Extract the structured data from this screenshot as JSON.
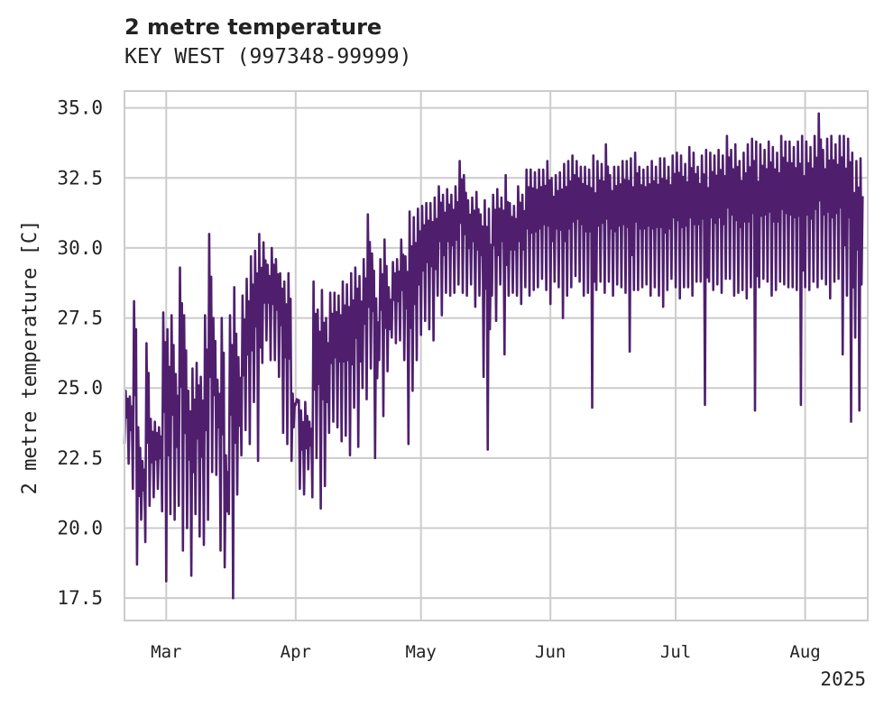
{
  "chart_data": {
    "type": "line",
    "title": "2 metre temperature",
    "subtitle": "KEY WEST (997348-99999)",
    "ylabel": "2 metre temperature [C]",
    "xlabel": "",
    "year_label": "2025",
    "ylim": [
      16.7,
      35.6
    ],
    "xlim": [
      "2025-02-19",
      "2025-08-16"
    ],
    "grid": true,
    "line_color": "#4f1f6e",
    "yticks": [
      {
        "value": 17.5,
        "label": "17.5"
      },
      {
        "value": 20.0,
        "label": "20.0"
      },
      {
        "value": 22.5,
        "label": "22.5"
      },
      {
        "value": 25.0,
        "label": "25.0"
      },
      {
        "value": 27.5,
        "label": "27.5"
      },
      {
        "value": 30.0,
        "label": "30.0"
      },
      {
        "value": 32.5,
        "label": "32.5"
      },
      {
        "value": 35.0,
        "label": "35.0"
      }
    ],
    "xticks": [
      {
        "date": "2025-03-01",
        "label": "Mar"
      },
      {
        "date": "2025-04-01",
        "label": "Apr"
      },
      {
        "date": "2025-05-01",
        "label": "May"
      },
      {
        "date": "2025-06-01",
        "label": "Jun"
      },
      {
        "date": "2025-07-01",
        "label": "Jul"
      },
      {
        "date": "2025-08-01",
        "label": "Aug"
      }
    ],
    "series": [
      {
        "x": [
          "2025-02-19",
          "2025-02-20",
          "2025-02-21",
          "2025-02-22",
          "2025-02-23",
          "2025-02-24",
          "2025-02-25",
          "2025-02-26",
          "2025-02-27",
          "2025-02-28",
          "2025-03-01",
          "2025-03-02",
          "2025-03-03",
          "2025-03-04",
          "2025-03-05",
          "2025-03-06",
          "2025-03-07",
          "2025-03-08",
          "2025-03-09",
          "2025-03-10",
          "2025-03-11",
          "2025-03-12",
          "2025-03-13",
          "2025-03-14",
          "2025-03-15",
          "2025-03-16",
          "2025-03-17",
          "2025-03-18",
          "2025-03-19",
          "2025-03-20",
          "2025-03-21",
          "2025-03-22",
          "2025-03-23",
          "2025-03-24",
          "2025-03-25",
          "2025-03-26",
          "2025-03-27",
          "2025-03-28",
          "2025-03-29",
          "2025-03-30",
          "2025-03-31",
          "2025-04-01",
          "2025-04-02",
          "2025-04-03",
          "2025-04-04",
          "2025-04-05",
          "2025-04-06",
          "2025-04-07",
          "2025-04-08",
          "2025-04-09",
          "2025-04-10",
          "2025-04-11",
          "2025-04-12",
          "2025-04-13",
          "2025-04-14",
          "2025-04-15",
          "2025-04-16",
          "2025-04-17",
          "2025-04-18",
          "2025-04-19",
          "2025-04-20",
          "2025-04-21",
          "2025-04-22",
          "2025-04-23",
          "2025-04-24",
          "2025-04-25",
          "2025-04-26",
          "2025-04-27",
          "2025-04-28",
          "2025-04-29",
          "2025-04-30",
          "2025-05-01",
          "2025-05-02",
          "2025-05-03",
          "2025-05-04",
          "2025-05-05",
          "2025-05-06",
          "2025-05-07",
          "2025-05-08",
          "2025-05-09",
          "2025-05-10",
          "2025-05-11",
          "2025-05-12",
          "2025-05-13",
          "2025-05-14",
          "2025-05-15",
          "2025-05-16",
          "2025-05-17",
          "2025-05-18",
          "2025-05-19",
          "2025-05-20",
          "2025-05-21",
          "2025-05-22",
          "2025-05-23",
          "2025-05-24",
          "2025-05-25",
          "2025-05-26",
          "2025-05-27",
          "2025-05-28",
          "2025-05-29",
          "2025-05-30",
          "2025-05-31",
          "2025-06-01",
          "2025-06-02",
          "2025-06-03",
          "2025-06-04",
          "2025-06-05",
          "2025-06-06",
          "2025-06-07",
          "2025-06-08",
          "2025-06-09",
          "2025-06-10",
          "2025-06-11",
          "2025-06-12",
          "2025-06-13",
          "2025-06-14",
          "2025-06-15",
          "2025-06-16",
          "2025-06-17",
          "2025-06-18",
          "2025-06-19",
          "2025-06-20",
          "2025-06-21",
          "2025-06-22",
          "2025-06-23",
          "2025-06-24",
          "2025-06-25",
          "2025-06-26",
          "2025-06-27",
          "2025-06-28",
          "2025-06-29",
          "2025-06-30",
          "2025-07-01",
          "2025-07-02",
          "2025-07-03",
          "2025-07-04",
          "2025-07-05",
          "2025-07-06",
          "2025-07-07",
          "2025-07-08",
          "2025-07-09",
          "2025-07-10",
          "2025-07-11",
          "2025-07-12",
          "2025-07-13",
          "2025-07-14",
          "2025-07-15",
          "2025-07-16",
          "2025-07-17",
          "2025-07-18",
          "2025-07-19",
          "2025-07-20",
          "2025-07-21",
          "2025-07-22",
          "2025-07-23",
          "2025-07-24",
          "2025-07-25",
          "2025-07-26",
          "2025-07-27",
          "2025-07-28",
          "2025-07-29",
          "2025-07-30",
          "2025-07-31",
          "2025-08-01",
          "2025-08-02",
          "2025-08-03",
          "2025-08-04",
          "2025-08-05",
          "2025-08-06",
          "2025-08-07",
          "2025-08-08",
          "2025-08-09",
          "2025-08-10",
          "2025-08-11",
          "2025-08-12",
          "2025-08-13",
          "2025-08-14",
          "2025-08-15"
        ],
        "min": [
          23.0,
          22.3,
          21.4,
          18.7,
          20.3,
          19.5,
          20.8,
          21.1,
          21.4,
          20.6,
          18.1,
          20.5,
          20.3,
          20.8,
          19.2,
          20.0,
          18.3,
          20.5,
          19.7,
          19.4,
          20.3,
          22.0,
          21.9,
          19.2,
          18.6,
          20.5,
          17.5,
          21.2,
          22.6,
          23.5,
          23.0,
          24.5,
          22.4,
          25.9,
          26.7,
          26.0,
          26.0,
          25.4,
          23.4,
          23.0,
          22.4,
          24.4,
          21.4,
          21.2,
          22.1,
          21.1,
          22.5,
          20.7,
          21.5,
          23.4,
          23.8,
          23.6,
          23.1,
          23.3,
          22.6,
          24.3,
          22.9,
          25.0,
          24.6,
          25.7,
          22.5,
          26.0,
          24.0,
          25.6,
          26.8,
          26.6,
          26.7,
          26.0,
          23.0,
          24.9,
          26.0,
          26.9,
          27.4,
          27.1,
          26.7,
          28.3,
          27.6,
          28.4,
          28.3,
          28.4,
          28.7,
          28.4,
          28.3,
          28.7,
          27.9,
          28.3,
          25.4,
          22.8,
          28.3,
          27.4,
          28.7,
          26.2,
          28.3,
          28.4,
          28.3,
          28.0,
          28.6,
          28.3,
          28.5,
          28.6,
          28.9,
          28.5,
          28.0,
          28.8,
          28.6,
          27.5,
          28.3,
          28.6,
          29.0,
          28.8,
          28.3,
          28.4,
          24.3,
          28.5,
          28.8,
          28.4,
          28.8,
          28.3,
          28.7,
          28.6,
          28.4,
          26.3,
          28.5,
          28.5,
          28.6,
          28.7,
          28.3,
          28.6,
          28.3,
          27.9,
          28.5,
          28.9,
          28.6,
          28.2,
          28.6,
          28.6,
          28.3,
          28.8,
          28.8,
          24.4,
          28.8,
          28.5,
          28.7,
          28.4,
          28.9,
          28.9,
          28.3,
          28.4,
          28.5,
          28.2,
          28.6,
          24.2,
          28.6,
          28.9,
          28.8,
          28.3,
          28.5,
          28.8,
          28.7,
          28.6,
          28.6,
          28.5,
          24.4,
          28.6,
          28.5,
          28.8,
          28.6,
          28.9,
          28.7,
          28.2,
          28.8,
          28.9,
          26.2,
          28.3,
          23.8,
          26.8,
          24.2
        ],
        "max": [
          24.9,
          24.7,
          28.1,
          23.6,
          22.4,
          26.6,
          23.9,
          23.8,
          23.6,
          27.7,
          27.1,
          27.6,
          25.5,
          29.3,
          27.6,
          24.9,
          25.7,
          25.9,
          25.4,
          27.6,
          30.5,
          27.5,
          25.3,
          27.5,
          22.6,
          27.6,
          28.6,
          26.1,
          28.3,
          28.9,
          29.7,
          29.9,
          30.5,
          30.2,
          29.4,
          30.0,
          29.6,
          29.1,
          28.8,
          29.1,
          24.8,
          24.6,
          24.2,
          24.5,
          23.8,
          28.8,
          27.8,
          28.5,
          27.5,
          28.4,
          28.4,
          28.3,
          28.8,
          28.7,
          29.1,
          29.3,
          29.0,
          29.6,
          31.2,
          29.8,
          28.2,
          29.6,
          30.3,
          28.6,
          29.5,
          29.6,
          30.3,
          29.7,
          31.3,
          31.1,
          31.4,
          31.5,
          31.6,
          31.6,
          31.8,
          32.2,
          31.9,
          32.1,
          31.9,
          32.2,
          33.1,
          32.6,
          31.7,
          31.8,
          32.0,
          31.2,
          31.7,
          31.4,
          31.9,
          32.1,
          31.8,
          32.6,
          31.6,
          31.5,
          32.2,
          31.9,
          32.8,
          32.8,
          32.7,
          32.8,
          32.8,
          33.1,
          32.5,
          32.6,
          32.7,
          33.0,
          33.1,
          33.3,
          33.1,
          32.9,
          32.9,
          32.8,
          33.3,
          33.1,
          33.0,
          33.7,
          32.6,
          32.9,
          32.9,
          33.1,
          33.1,
          33.2,
          33.4,
          32.9,
          32.8,
          32.9,
          33.1,
          32.9,
          33.2,
          33.2,
          32.9,
          33.3,
          33.4,
          33.3,
          33.0,
          33.6,
          33.4,
          32.9,
          33.3,
          33.5,
          33.4,
          33.3,
          33.5,
          33.3,
          34.0,
          33.5,
          33.7,
          33.1,
          33.4,
          33.7,
          33.9,
          33.8,
          33.7,
          33.5,
          33.8,
          33.6,
          33.4,
          34.0,
          33.8,
          33.8,
          33.6,
          33.8,
          34.0,
          33.8,
          33.6,
          34.0,
          34.8,
          33.5,
          33.9,
          34.0,
          33.7,
          34.0,
          34.0,
          33.9,
          33.4,
          33.1,
          33.2,
          34.2,
          33.6,
          34.1,
          34.2
        ]
      }
    ]
  }
}
